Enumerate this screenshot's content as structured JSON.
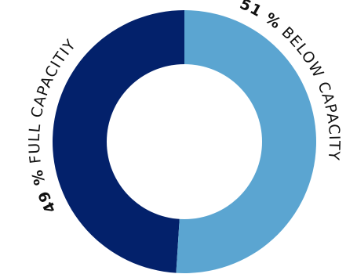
{
  "chart_data": {
    "type": "pie",
    "variant": "donut",
    "title": "",
    "slices": [
      {
        "label": "FULL CAPACITIY",
        "value": 49,
        "display": "49 %",
        "color": "#03216b"
      },
      {
        "label": "BELOW CAPACITY",
        "value": 51,
        "display": "51 %",
        "color": "#5ba5d1"
      }
    ],
    "legend": "none",
    "labels_placement": "curved outside ring"
  }
}
